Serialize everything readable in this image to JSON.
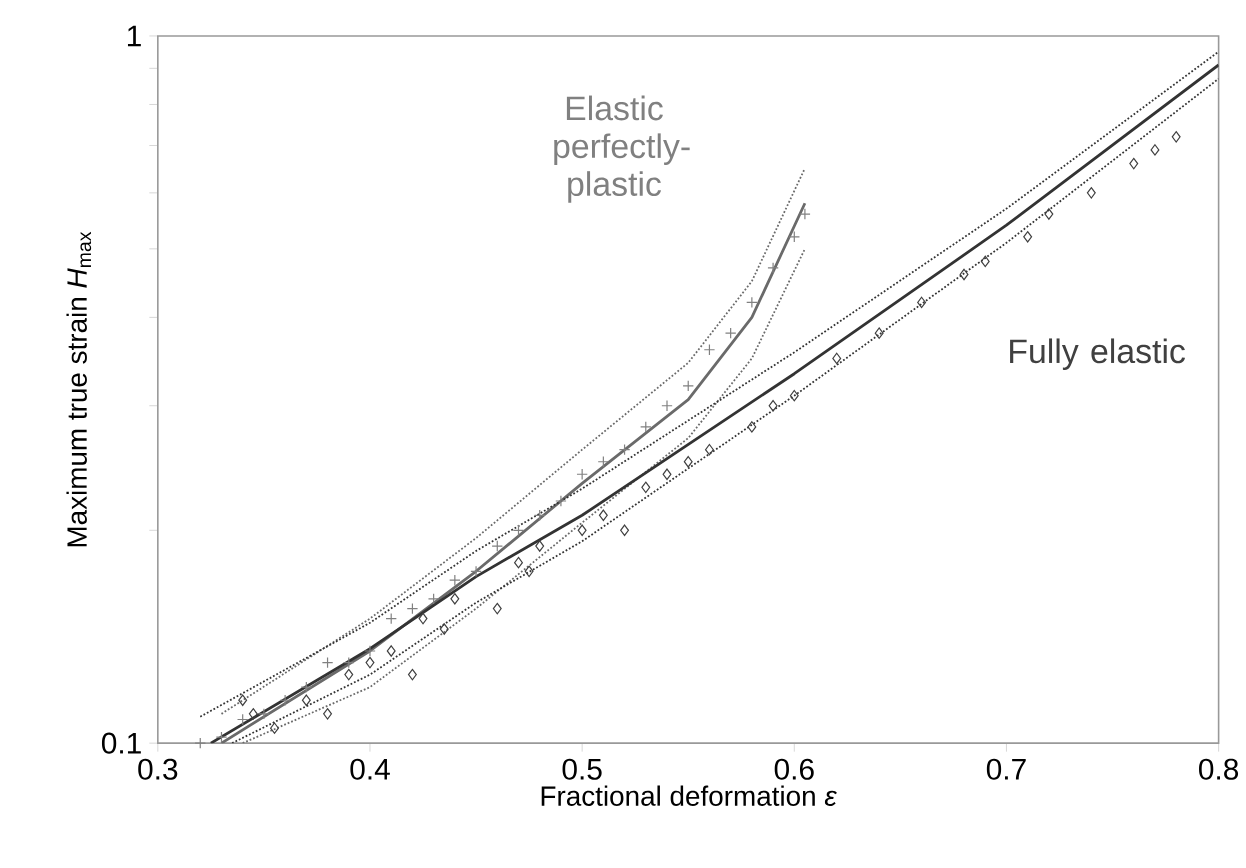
{
  "chart_data": {
    "type": "scatter",
    "xlabel": "Fractional deformation *ε*",
    "ylabel": "Maximum true strain *H*$_{max}$",
    "xlim": [
      0.3,
      0.8
    ],
    "xticks": [
      0.3,
      0.4,
      0.5,
      0.6,
      0.7,
      0.8
    ],
    "ylim": [
      0.1,
      1
    ],
    "yticks": [
      0.1,
      {
        "value": 0.2,
        "label": null
      },
      {
        "value": 0.3,
        "label": null
      },
      {
        "value": 0.4,
        "label": null
      },
      {
        "value": 0.5,
        "label": null
      },
      {
        "value": 0.6,
        "label": null
      },
      {
        "value": 0.7,
        "label": null
      },
      {
        "value": 0.8,
        "label": null
      },
      {
        "value": 0.9,
        "label": null
      },
      1
    ],
    "log": "y",
    "grid": false,
    "legend": false,
    "series": [
      {
        "name": "Elastic perfectly-plastic",
        "marker": "cross",
        "color": "#808080",
        "x": [
          0.32,
          0.33,
          0.34,
          0.35,
          0.36,
          0.37,
          0.38,
          0.39,
          0.4,
          0.41,
          0.42,
          0.43,
          0.44,
          0.45,
          0.46,
          0.47,
          0.48,
          0.49,
          0.5,
          0.51,
          0.52,
          0.53,
          0.54,
          0.55,
          0.56,
          0.57,
          0.58,
          0.59,
          0.6,
          0.605
        ],
        "values": [
          0.1,
          0.102,
          0.108,
          0.11,
          0.115,
          0.12,
          0.13,
          0.13,
          0.135,
          0.15,
          0.155,
          0.16,
          0.17,
          0.175,
          0.19,
          0.2,
          0.21,
          0.22,
          0.24,
          0.25,
          0.26,
          0.28,
          0.3,
          0.32,
          0.36,
          0.38,
          0.42,
          0.47,
          0.52,
          0.56
        ]
      },
      {
        "type": "line",
        "line_style": "solid",
        "color": "#6a6a6a",
        "x": [
          0.33,
          0.4,
          0.45,
          0.5,
          0.55,
          0.58,
          0.605
        ],
        "values": [
          0.1,
          0.135,
          0.175,
          0.233,
          0.306,
          0.4,
          0.58
        ]
      },
      {
        "type": "line",
        "line_style": "dotted",
        "color": "#6a6a6a",
        "x": [
          0.34,
          0.4,
          0.45,
          0.5,
          0.55,
          0.58,
          0.605
        ],
        "values": [
          0.1,
          0.12,
          0.155,
          0.205,
          0.27,
          0.35,
          0.5
        ]
      },
      {
        "type": "line",
        "line_style": "dotted",
        "color": "#6a6a6a",
        "x": [
          0.33,
          0.4,
          0.45,
          0.5,
          0.55,
          0.58,
          0.605
        ],
        "values": [
          0.11,
          0.15,
          0.195,
          0.26,
          0.345,
          0.45,
          0.65
        ]
      },
      {
        "name": "Fully elastic",
        "marker": "diamond",
        "color": "#404040",
        "x": [
          0.34,
          0.345,
          0.355,
          0.37,
          0.38,
          0.39,
          0.4,
          0.41,
          0.42,
          0.425,
          0.435,
          0.44,
          0.46,
          0.47,
          0.475,
          0.48,
          0.5,
          0.51,
          0.52,
          0.53,
          0.54,
          0.55,
          0.56,
          0.58,
          0.59,
          0.6,
          0.62,
          0.64,
          0.66,
          0.68,
          0.69,
          0.71,
          0.72,
          0.74,
          0.76,
          0.77,
          0.78
        ],
        "values": [
          0.115,
          0.11,
          0.105,
          0.115,
          0.11,
          0.125,
          0.13,
          0.135,
          0.125,
          0.15,
          0.145,
          0.16,
          0.155,
          0.18,
          0.175,
          0.19,
          0.2,
          0.21,
          0.2,
          0.23,
          0.24,
          0.25,
          0.26,
          0.28,
          0.3,
          0.31,
          0.35,
          0.38,
          0.42,
          0.46,
          0.48,
          0.52,
          0.56,
          0.6,
          0.66,
          0.69,
          0.72
        ]
      },
      {
        "type": "line",
        "line_style": "solid",
        "color": "#333333",
        "x": [
          0.325,
          0.4,
          0.45,
          0.5,
          0.6,
          0.7,
          0.8
        ],
        "values": [
          0.1,
          0.136,
          0.172,
          0.21,
          0.333,
          0.54,
          0.91
        ]
      },
      {
        "type": "line",
        "line_style": "dotted",
        "color": "#333333",
        "x": [
          0.335,
          0.4,
          0.45,
          0.5,
          0.6,
          0.7,
          0.8
        ],
        "values": [
          0.1,
          0.125,
          0.158,
          0.193,
          0.31,
          0.51,
          0.87
        ]
      },
      {
        "type": "line",
        "line_style": "dotted",
        "color": "#333333",
        "x": [
          0.32,
          0.4,
          0.45,
          0.5,
          0.6,
          0.7,
          0.8
        ],
        "values": [
          0.109,
          0.148,
          0.187,
          0.229,
          0.357,
          0.57,
          0.95
        ]
      }
    ]
  }
}
